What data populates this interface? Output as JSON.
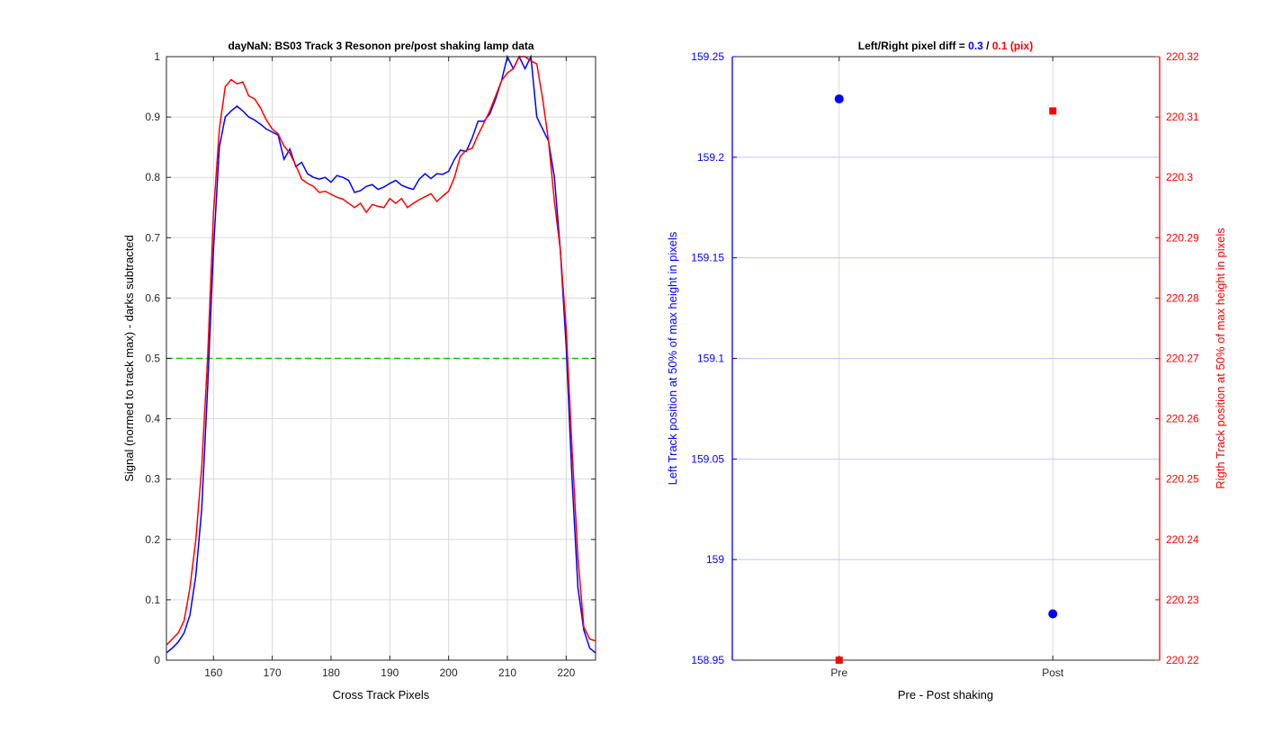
{
  "chart_data": [
    {
      "type": "line",
      "title": "dayNaN: BS03  Track 3 Resonon pre/post shaking lamp data",
      "xlabel": "Cross Track Pixels",
      "ylabel": "Signal (normed to track max) - darks subtracted",
      "xlim": [
        152,
        225
      ],
      "ylim": [
        0,
        1
      ],
      "xticks": [
        160,
        170,
        180,
        190,
        200,
        210,
        220
      ],
      "yticks": [
        0,
        0.1,
        0.2,
        0.3,
        0.4,
        0.5,
        0.6,
        0.7,
        0.8,
        0.9,
        1
      ],
      "ytick_labels": [
        "0",
        "0.1",
        "0.2",
        "0.3",
        "0.4",
        "0.5",
        "0.6",
        "0.7",
        "0.8",
        "0.9",
        "1"
      ],
      "grid": true,
      "reference_line": {
        "y": 0.5,
        "color": "#00cc00",
        "style": "dashed"
      },
      "series": [
        {
          "color": "#0000ff",
          "x": [
            152,
            153,
            154,
            155,
            156,
            157,
            158,
            159,
            160,
            161,
            162,
            163,
            164,
            165,
            166,
            167,
            168,
            169,
            170,
            171,
            172,
            173,
            174,
            175,
            176,
            177,
            178,
            179,
            180,
            181,
            182,
            183,
            184,
            185,
            186,
            187,
            188,
            189,
            190,
            191,
            192,
            193,
            194,
            195,
            196,
            197,
            198,
            199,
            200,
            201,
            202,
            203,
            204,
            205,
            206,
            207,
            208,
            209,
            210,
            211,
            212,
            213,
            214,
            215,
            216,
            217,
            218,
            219,
            220,
            221,
            222,
            223,
            224,
            225
          ],
          "y": [
            0.012,
            0.02,
            0.03,
            0.045,
            0.075,
            0.14,
            0.25,
            0.45,
            0.68,
            0.85,
            0.9,
            0.91,
            0.918,
            0.91,
            0.9,
            0.895,
            0.888,
            0.88,
            0.875,
            0.87,
            0.83,
            0.847,
            0.818,
            0.825,
            0.806,
            0.8,
            0.797,
            0.8,
            0.792,
            0.803,
            0.8,
            0.795,
            0.775,
            0.778,
            0.785,
            0.788,
            0.78,
            0.784,
            0.79,
            0.795,
            0.787,
            0.783,
            0.78,
            0.797,
            0.806,
            0.798,
            0.806,
            0.805,
            0.81,
            0.83,
            0.845,
            0.843,
            0.865,
            0.893,
            0.893,
            0.905,
            0.93,
            0.96,
            1.0,
            0.98,
            1.0,
            0.98,
            1.0,
            0.9,
            0.88,
            0.86,
            0.8,
            0.68,
            0.52,
            0.3,
            0.12,
            0.05,
            0.02,
            0.012
          ]
        },
        {
          "color": "#ff0000",
          "x": [
            152,
            153,
            154,
            155,
            156,
            157,
            158,
            159,
            160,
            161,
            162,
            163,
            164,
            165,
            166,
            167,
            168,
            169,
            170,
            171,
            172,
            173,
            174,
            175,
            176,
            177,
            178,
            179,
            180,
            181,
            182,
            183,
            184,
            185,
            186,
            187,
            188,
            189,
            190,
            191,
            192,
            193,
            194,
            195,
            196,
            197,
            198,
            199,
            200,
            201,
            202,
            203,
            204,
            205,
            206,
            207,
            208,
            209,
            210,
            211,
            212,
            213,
            214,
            215,
            216,
            217,
            218,
            219,
            220,
            221,
            222,
            223,
            224,
            225
          ],
          "y": [
            0.025,
            0.035,
            0.045,
            0.065,
            0.12,
            0.2,
            0.32,
            0.5,
            0.74,
            0.88,
            0.95,
            0.962,
            0.955,
            0.958,
            0.935,
            0.93,
            0.915,
            0.895,
            0.88,
            0.872,
            0.852,
            0.84,
            0.82,
            0.797,
            0.79,
            0.785,
            0.775,
            0.777,
            0.772,
            0.767,
            0.764,
            0.757,
            0.75,
            0.757,
            0.742,
            0.755,
            0.752,
            0.75,
            0.765,
            0.757,
            0.765,
            0.75,
            0.757,
            0.763,
            0.768,
            0.773,
            0.76,
            0.769,
            0.777,
            0.8,
            0.835,
            0.845,
            0.848,
            0.87,
            0.89,
            0.91,
            0.935,
            0.96,
            0.973,
            0.98,
            1.0,
            1.0,
            0.993,
            0.988,
            0.93,
            0.86,
            0.76,
            0.68,
            0.55,
            0.35,
            0.17,
            0.055,
            0.035,
            0.032
          ]
        }
      ]
    },
    {
      "type": "scatter",
      "title_parts": [
        {
          "text": "Left/Right pixel diff = ",
          "color": "#000000"
        },
        {
          "text": "0.3",
          "color": "#0000ff"
        },
        {
          "text": " / ",
          "color": "#000000"
        },
        {
          "text": "0.1 (pix)",
          "color": "#ff0000"
        }
      ],
      "xlabel": "Pre - Post shaking",
      "categories": [
        "Pre",
        "Post"
      ],
      "xlim": [
        0.5,
        2.5
      ],
      "ylabel_left": "Left Track position at 50% of max height in pixels",
      "ylabel_right": "Rigth Track position at 50% of max height in pixels",
      "ylim_left": [
        158.95,
        159.25
      ],
      "ylim_right": [
        220.22,
        220.32
      ],
      "yticks_left": [
        "158.95",
        "159",
        "159.05",
        "159.1",
        "159.15",
        "159.2",
        "159.25"
      ],
      "yticks_right": [
        "220.22",
        "220.23",
        "220.24",
        "220.25",
        "220.26",
        "220.27",
        "220.28",
        "220.29",
        "220.3",
        "220.31",
        "220.32"
      ],
      "series": [
        {
          "axis": "left",
          "marker": "circle",
          "color": "#0000ff",
          "x": [
            1,
            2
          ],
          "values": [
            159.229,
            158.973
          ]
        },
        {
          "axis": "right",
          "marker": "square",
          "color": "#ff0000",
          "x": [
            1,
            2
          ],
          "values": [
            220.22,
            220.311
          ]
        }
      ]
    }
  ]
}
